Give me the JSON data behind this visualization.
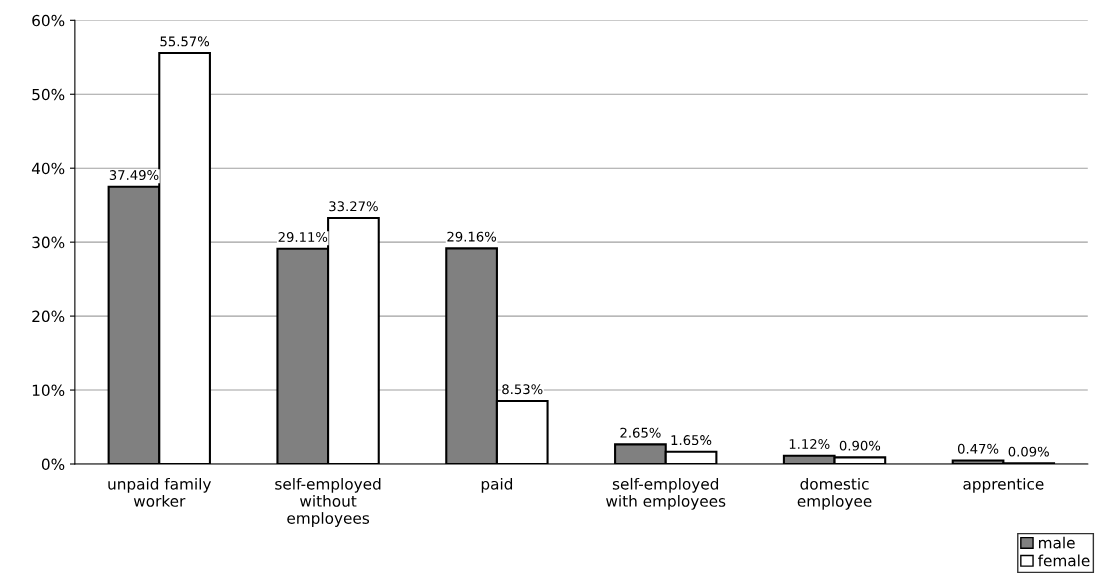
{
  "chart_data": {
    "type": "bar",
    "categories": [
      "unpaid family\nworker",
      "self-employed\nwithout\nemployees",
      "paid",
      "self-employed\nwith employees",
      "domestic\nemployee",
      "apprentice"
    ],
    "series": [
      {
        "name": "male",
        "color": "#808080",
        "values": [
          37.49,
          29.11,
          29.16,
          2.65,
          1.12,
          0.47
        ],
        "value_labels": [
          "37.49%",
          "29.11%",
          "29.16%",
          "2.65%",
          "1.12%",
          "0.47%"
        ]
      },
      {
        "name": "female",
        "color": "#ffffff",
        "values": [
          55.57,
          33.27,
          8.53,
          1.65,
          0.9,
          0.09
        ],
        "value_labels": [
          "55.57%",
          "33.27%",
          "8.53%",
          "1.65%",
          "0.90%",
          "0.09%"
        ]
      }
    ],
    "ylim": [
      0,
      60
    ],
    "yticks": [
      {
        "value": 0,
        "label": "0%"
      },
      {
        "value": 10,
        "label": "10%"
      },
      {
        "value": 20,
        "label": "20%"
      },
      {
        "value": 30,
        "label": "30%"
      },
      {
        "value": 40,
        "label": "40%"
      },
      {
        "value": 50,
        "label": "50%"
      },
      {
        "value": 60,
        "label": "60%"
      }
    ],
    "grid": "y",
    "legend": "bottom right"
  }
}
